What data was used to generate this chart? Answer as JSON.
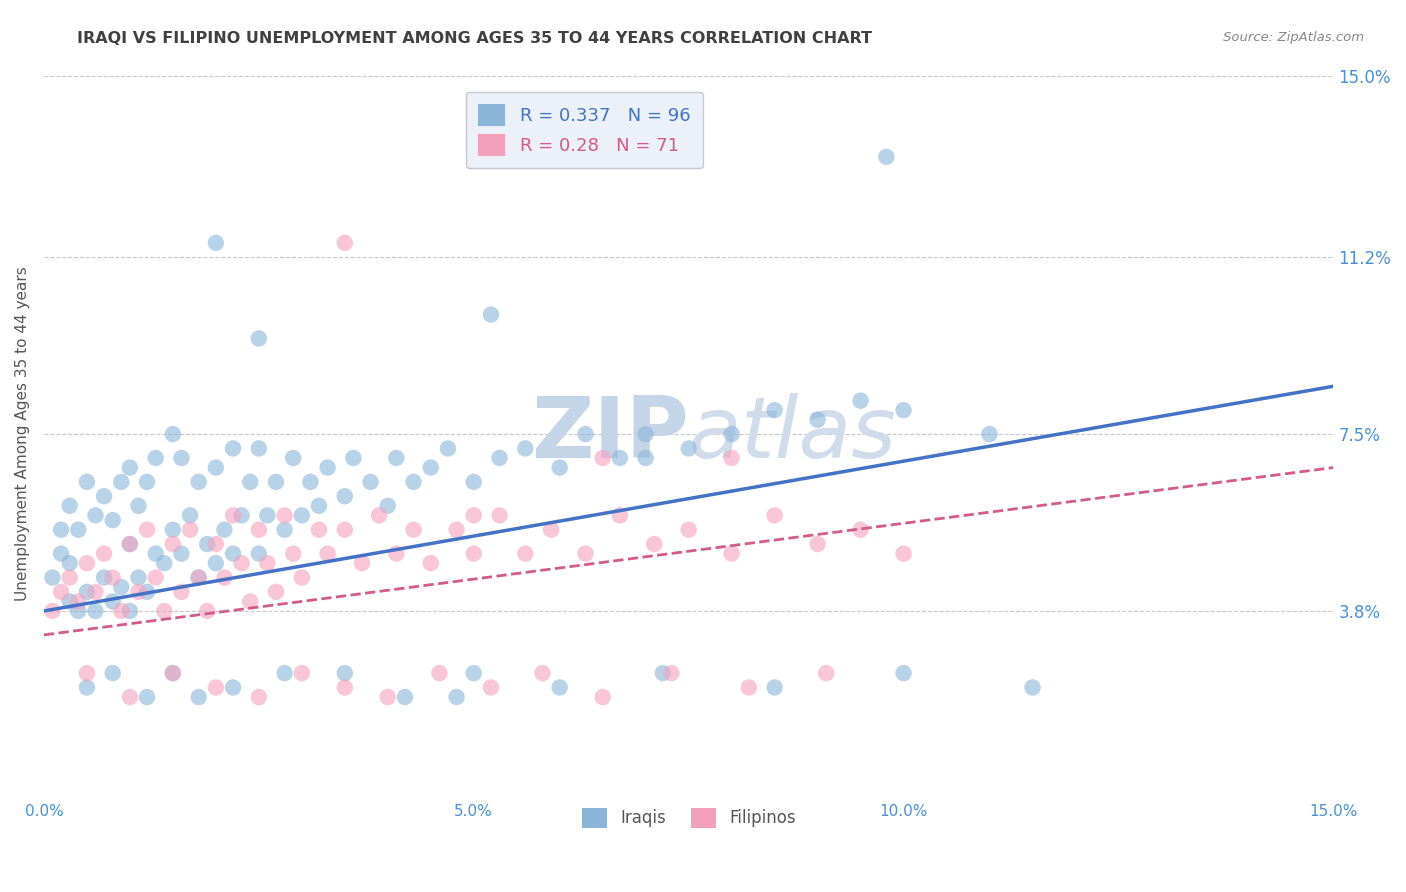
{
  "title": "IRAQI VS FILIPINO UNEMPLOYMENT AMONG AGES 35 TO 44 YEARS CORRELATION CHART",
  "source": "Source: ZipAtlas.com",
  "ylabel": "Unemployment Among Ages 35 to 44 years",
  "xlim": [
    0.0,
    0.15
  ],
  "ylim": [
    0.0,
    0.15
  ],
  "xtick_positions": [
    0.0,
    0.05,
    0.1,
    0.15
  ],
  "xtick_labels": [
    "0.0%",
    "5.0%",
    "10.0%",
    "15.0%"
  ],
  "yticks_right": [
    0.15,
    0.112,
    0.075,
    0.038
  ],
  "ytick_labels_right": [
    "15.0%",
    "11.2%",
    "7.5%",
    "3.8%"
  ],
  "iraqi_R": 0.337,
  "iraqi_N": 96,
  "filipino_R": 0.28,
  "filipino_N": 71,
  "iraqi_color": "#8ab4d8",
  "filipino_color": "#f4a0bc",
  "iraqi_line_color": "#4472c4",
  "filipino_line_color": "#d45a8a",
  "background_color": "#ffffff",
  "grid_color": "#c8c8c8",
  "watermark_color": "#dce5f0",
  "legend_box_color": "#e8eef8",
  "title_color": "#404040",
  "axis_label_color": "#555555",
  "right_tick_color": "#4a90d9",
  "iraqi_line_x0": 0.0,
  "iraqi_line_y0": 0.038,
  "iraqi_line_x1": 0.15,
  "iraqi_line_y1": 0.085,
  "filipino_line_x0": 0.0,
  "filipino_line_y0": 0.033,
  "filipino_line_x1": 0.15,
  "filipino_line_y1": 0.068,
  "iraqi_pts_x": [
    0.001,
    0.002,
    0.002,
    0.003,
    0.003,
    0.003,
    0.004,
    0.004,
    0.005,
    0.005,
    0.006,
    0.006,
    0.007,
    0.007,
    0.008,
    0.008,
    0.009,
    0.009,
    0.01,
    0.01,
    0.01,
    0.011,
    0.011,
    0.012,
    0.012,
    0.013,
    0.013,
    0.014,
    0.015,
    0.015,
    0.016,
    0.016,
    0.017,
    0.018,
    0.018,
    0.019,
    0.02,
    0.02,
    0.021,
    0.022,
    0.022,
    0.023,
    0.024,
    0.025,
    0.025,
    0.026,
    0.027,
    0.028,
    0.029,
    0.03,
    0.031,
    0.032,
    0.033,
    0.035,
    0.036,
    0.038,
    0.04,
    0.041,
    0.043,
    0.045,
    0.047,
    0.05,
    0.053,
    0.056,
    0.06,
    0.063,
    0.067,
    0.07,
    0.075,
    0.08,
    0.085,
    0.09,
    0.095,
    0.1,
    0.11,
    0.02,
    0.025,
    0.052,
    0.098,
    0.005,
    0.008,
    0.012,
    0.015,
    0.018,
    0.022,
    0.028,
    0.035,
    0.042,
    0.05,
    0.06,
    0.072,
    0.085,
    0.1,
    0.115,
    0.07,
    0.048
  ],
  "iraqi_pts_y": [
    0.045,
    0.05,
    0.055,
    0.04,
    0.048,
    0.06,
    0.038,
    0.055,
    0.042,
    0.065,
    0.038,
    0.058,
    0.045,
    0.062,
    0.04,
    0.057,
    0.043,
    0.065,
    0.038,
    0.052,
    0.068,
    0.045,
    0.06,
    0.042,
    0.065,
    0.05,
    0.07,
    0.048,
    0.055,
    0.075,
    0.05,
    0.07,
    0.058,
    0.045,
    0.065,
    0.052,
    0.048,
    0.068,
    0.055,
    0.05,
    0.072,
    0.058,
    0.065,
    0.05,
    0.072,
    0.058,
    0.065,
    0.055,
    0.07,
    0.058,
    0.065,
    0.06,
    0.068,
    0.062,
    0.07,
    0.065,
    0.06,
    0.07,
    0.065,
    0.068,
    0.072,
    0.065,
    0.07,
    0.072,
    0.068,
    0.075,
    0.07,
    0.075,
    0.072,
    0.075,
    0.08,
    0.078,
    0.082,
    0.08,
    0.075,
    0.115,
    0.095,
    0.1,
    0.133,
    0.022,
    0.025,
    0.02,
    0.025,
    0.02,
    0.022,
    0.025,
    0.025,
    0.02,
    0.025,
    0.022,
    0.025,
    0.022,
    0.025,
    0.022,
    0.07,
    0.02
  ],
  "filipino_pts_x": [
    0.001,
    0.002,
    0.003,
    0.004,
    0.005,
    0.006,
    0.007,
    0.008,
    0.009,
    0.01,
    0.011,
    0.012,
    0.013,
    0.014,
    0.015,
    0.016,
    0.017,
    0.018,
    0.019,
    0.02,
    0.021,
    0.022,
    0.023,
    0.024,
    0.025,
    0.026,
    0.027,
    0.028,
    0.029,
    0.03,
    0.032,
    0.033,
    0.035,
    0.037,
    0.039,
    0.041,
    0.043,
    0.045,
    0.048,
    0.05,
    0.053,
    0.056,
    0.059,
    0.063,
    0.067,
    0.071,
    0.075,
    0.08,
    0.085,
    0.09,
    0.095,
    0.1,
    0.005,
    0.01,
    0.015,
    0.02,
    0.025,
    0.03,
    0.035,
    0.04,
    0.046,
    0.052,
    0.058,
    0.065,
    0.073,
    0.082,
    0.091,
    0.035,
    0.05,
    0.065,
    0.08
  ],
  "filipino_pts_y": [
    0.038,
    0.042,
    0.045,
    0.04,
    0.048,
    0.042,
    0.05,
    0.045,
    0.038,
    0.052,
    0.042,
    0.055,
    0.045,
    0.038,
    0.052,
    0.042,
    0.055,
    0.045,
    0.038,
    0.052,
    0.045,
    0.058,
    0.048,
    0.04,
    0.055,
    0.048,
    0.042,
    0.058,
    0.05,
    0.045,
    0.055,
    0.05,
    0.055,
    0.048,
    0.058,
    0.05,
    0.055,
    0.048,
    0.055,
    0.05,
    0.058,
    0.05,
    0.055,
    0.05,
    0.058,
    0.052,
    0.055,
    0.05,
    0.058,
    0.052,
    0.055,
    0.05,
    0.025,
    0.02,
    0.025,
    0.022,
    0.02,
    0.025,
    0.022,
    0.02,
    0.025,
    0.022,
    0.025,
    0.02,
    0.025,
    0.022,
    0.025,
    0.115,
    0.058,
    0.07,
    0.07
  ]
}
